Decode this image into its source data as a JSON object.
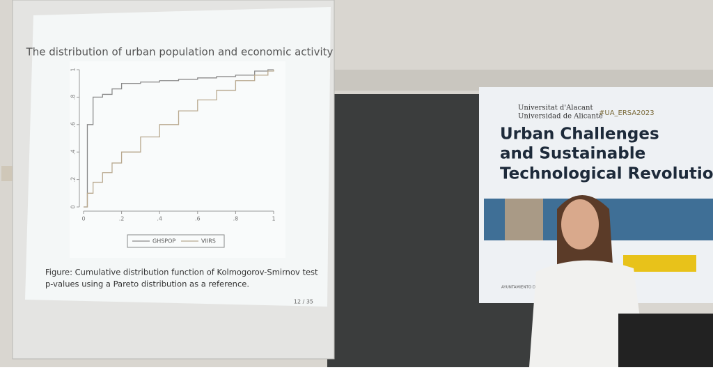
{
  "slide": {
    "title": "The distribution of urban population and economic activity",
    "caption": [
      "Figure: Cumulative distribution function of Kolmogorov-Smirnov test",
      "p-values using a Pareto distribution as a reference."
    ],
    "page": "12 / 35"
  },
  "chart_data": {
    "type": "line",
    "x": [
      0,
      0.02,
      0.05,
      0.1,
      0.15,
      0.2,
      0.3,
      0.4,
      0.5,
      0.6,
      0.7,
      0.8,
      0.9,
      0.97,
      1
    ],
    "series": [
      {
        "name": "GHSPOP",
        "color": "#8a8a8a",
        "values": [
          0,
          0.6,
          0.8,
          0.82,
          0.86,
          0.9,
          0.91,
          0.92,
          0.93,
          0.94,
          0.95,
          0.96,
          0.99,
          1,
          1
        ]
      },
      {
        "name": "VIIRS",
        "color": "#b9a98f",
        "values": [
          0,
          0.1,
          0.18,
          0.25,
          0.32,
          0.4,
          0.51,
          0.6,
          0.7,
          0.78,
          0.85,
          0.92,
          0.96,
          0.99,
          1
        ]
      }
    ],
    "xlim": [
      0,
      1
    ],
    "ylim": [
      0,
      1
    ],
    "xticks": [
      0,
      {
        "value": 0.2,
        "label": ".2"
      },
      {
        "value": 0.4,
        "label": ".4"
      },
      {
        "value": 0.6,
        "label": ".6"
      },
      {
        "value": 0.8,
        "label": ".8"
      },
      1
    ],
    "yticks": [
      0,
      {
        "value": 0.2,
        "label": ".2"
      },
      {
        "value": 0.4,
        "label": ".4"
      },
      {
        "value": 0.6,
        "label": ".6"
      },
      {
        "value": 0.8,
        "label": ".8"
      },
      1
    ]
  },
  "banner": {
    "university": [
      "Universitat d'Alacant",
      "Universidad de Alicante"
    ],
    "hashtag": "#UA_ERSA2023",
    "headline": [
      "Urban Challenges",
      "and Sustainable",
      "Technological Revolution"
    ],
    "sponsor": "AYUNTAMIENTO DE ALICANTE"
  }
}
